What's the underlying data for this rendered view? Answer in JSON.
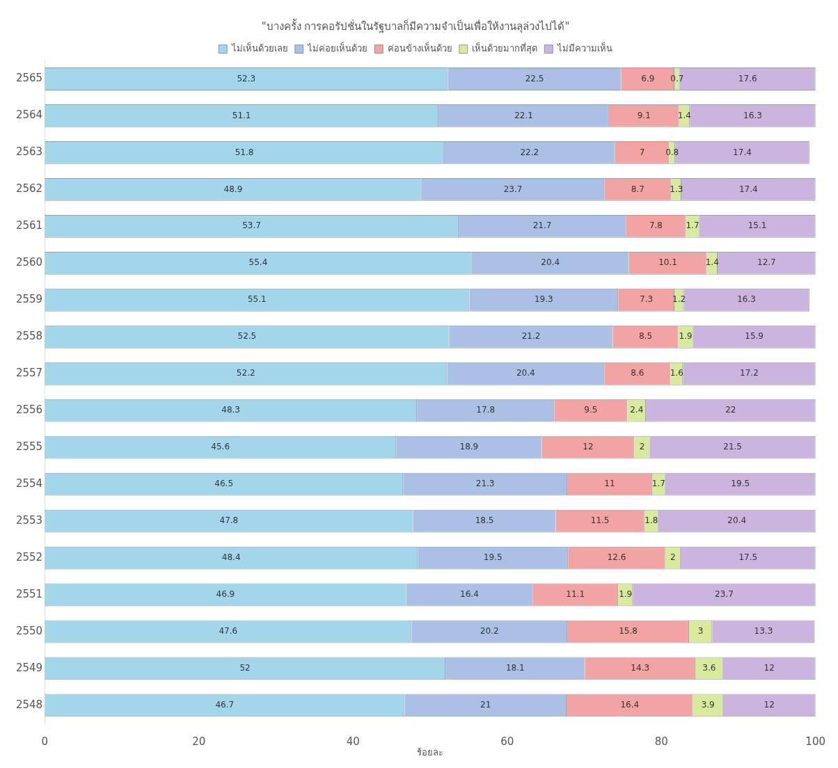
{
  "chart_data": {
    "type": "bar",
    "orientation": "horizontal",
    "stacked": true,
    "title": "\"บางครั้ง การคอรัปชั่นในรัฐบาลก็มีความจำเป็นเพื่อให้งานลุล่วงไปได้\"",
    "xlabel": "ร้อยละ",
    "categories": [
      "2565",
      "2564",
      "2563",
      "2562",
      "2561",
      "2560",
      "2559",
      "2558",
      "2557",
      "2556",
      "2555",
      "2554",
      "2553",
      "2552",
      "2551",
      "2550",
      "2549",
      "2548"
    ],
    "series": [
      {
        "name": "ไม่เห็นด้วยเลย",
        "color": "#a3d6ea",
        "values": [
          52.3,
          51.1,
          51.8,
          48.9,
          53.7,
          55.4,
          55.1,
          52.5,
          52.2,
          48.3,
          45.6,
          46.5,
          47.8,
          48.4,
          46.9,
          47.6,
          52,
          46.7
        ]
      },
      {
        "name": "ไม่ค่อยเห็นด้วย",
        "color": "#aac0e4",
        "values": [
          22.5,
          22.1,
          22.2,
          23.7,
          21.7,
          20.4,
          19.3,
          21.2,
          20.4,
          17.8,
          18.9,
          21.3,
          18.5,
          19.5,
          16.4,
          20.2,
          18.1,
          21
        ]
      },
      {
        "name": "ค่อนข้างเห็นด้วย",
        "color": "#f2a4a2",
        "values": [
          6.9,
          9.1,
          7.0,
          8.7,
          7.8,
          10.1,
          7.3,
          8.5,
          8.6,
          9.5,
          12,
          11,
          11.5,
          12.6,
          11.1,
          15.8,
          14.3,
          16.4
        ]
      },
      {
        "name": "เห็นด้วยมากที่สุด",
        "color": "#d8ea9c",
        "values": [
          0.7,
          1.4,
          0.8,
          1.3,
          1.7,
          1.4,
          1.2,
          1.9,
          1.6,
          2.4,
          2,
          1.7,
          1.8,
          2,
          1.9,
          3,
          3.6,
          3.9
        ]
      },
      {
        "name": "ไม่มีความเห็น",
        "color": "#cbb5de",
        "values": [
          17.6,
          16.3,
          17.4,
          17.4,
          15.1,
          12.7,
          16.3,
          15.9,
          17.2,
          22,
          21.5,
          19.5,
          20.4,
          17.5,
          23.7,
          13.3,
          12,
          12
        ]
      }
    ],
    "xlim": [
      0,
      100
    ],
    "xticks": [
      0,
      20,
      40,
      60,
      80,
      100
    ],
    "grid": false,
    "legend": "top",
    "data_labels": true
  }
}
